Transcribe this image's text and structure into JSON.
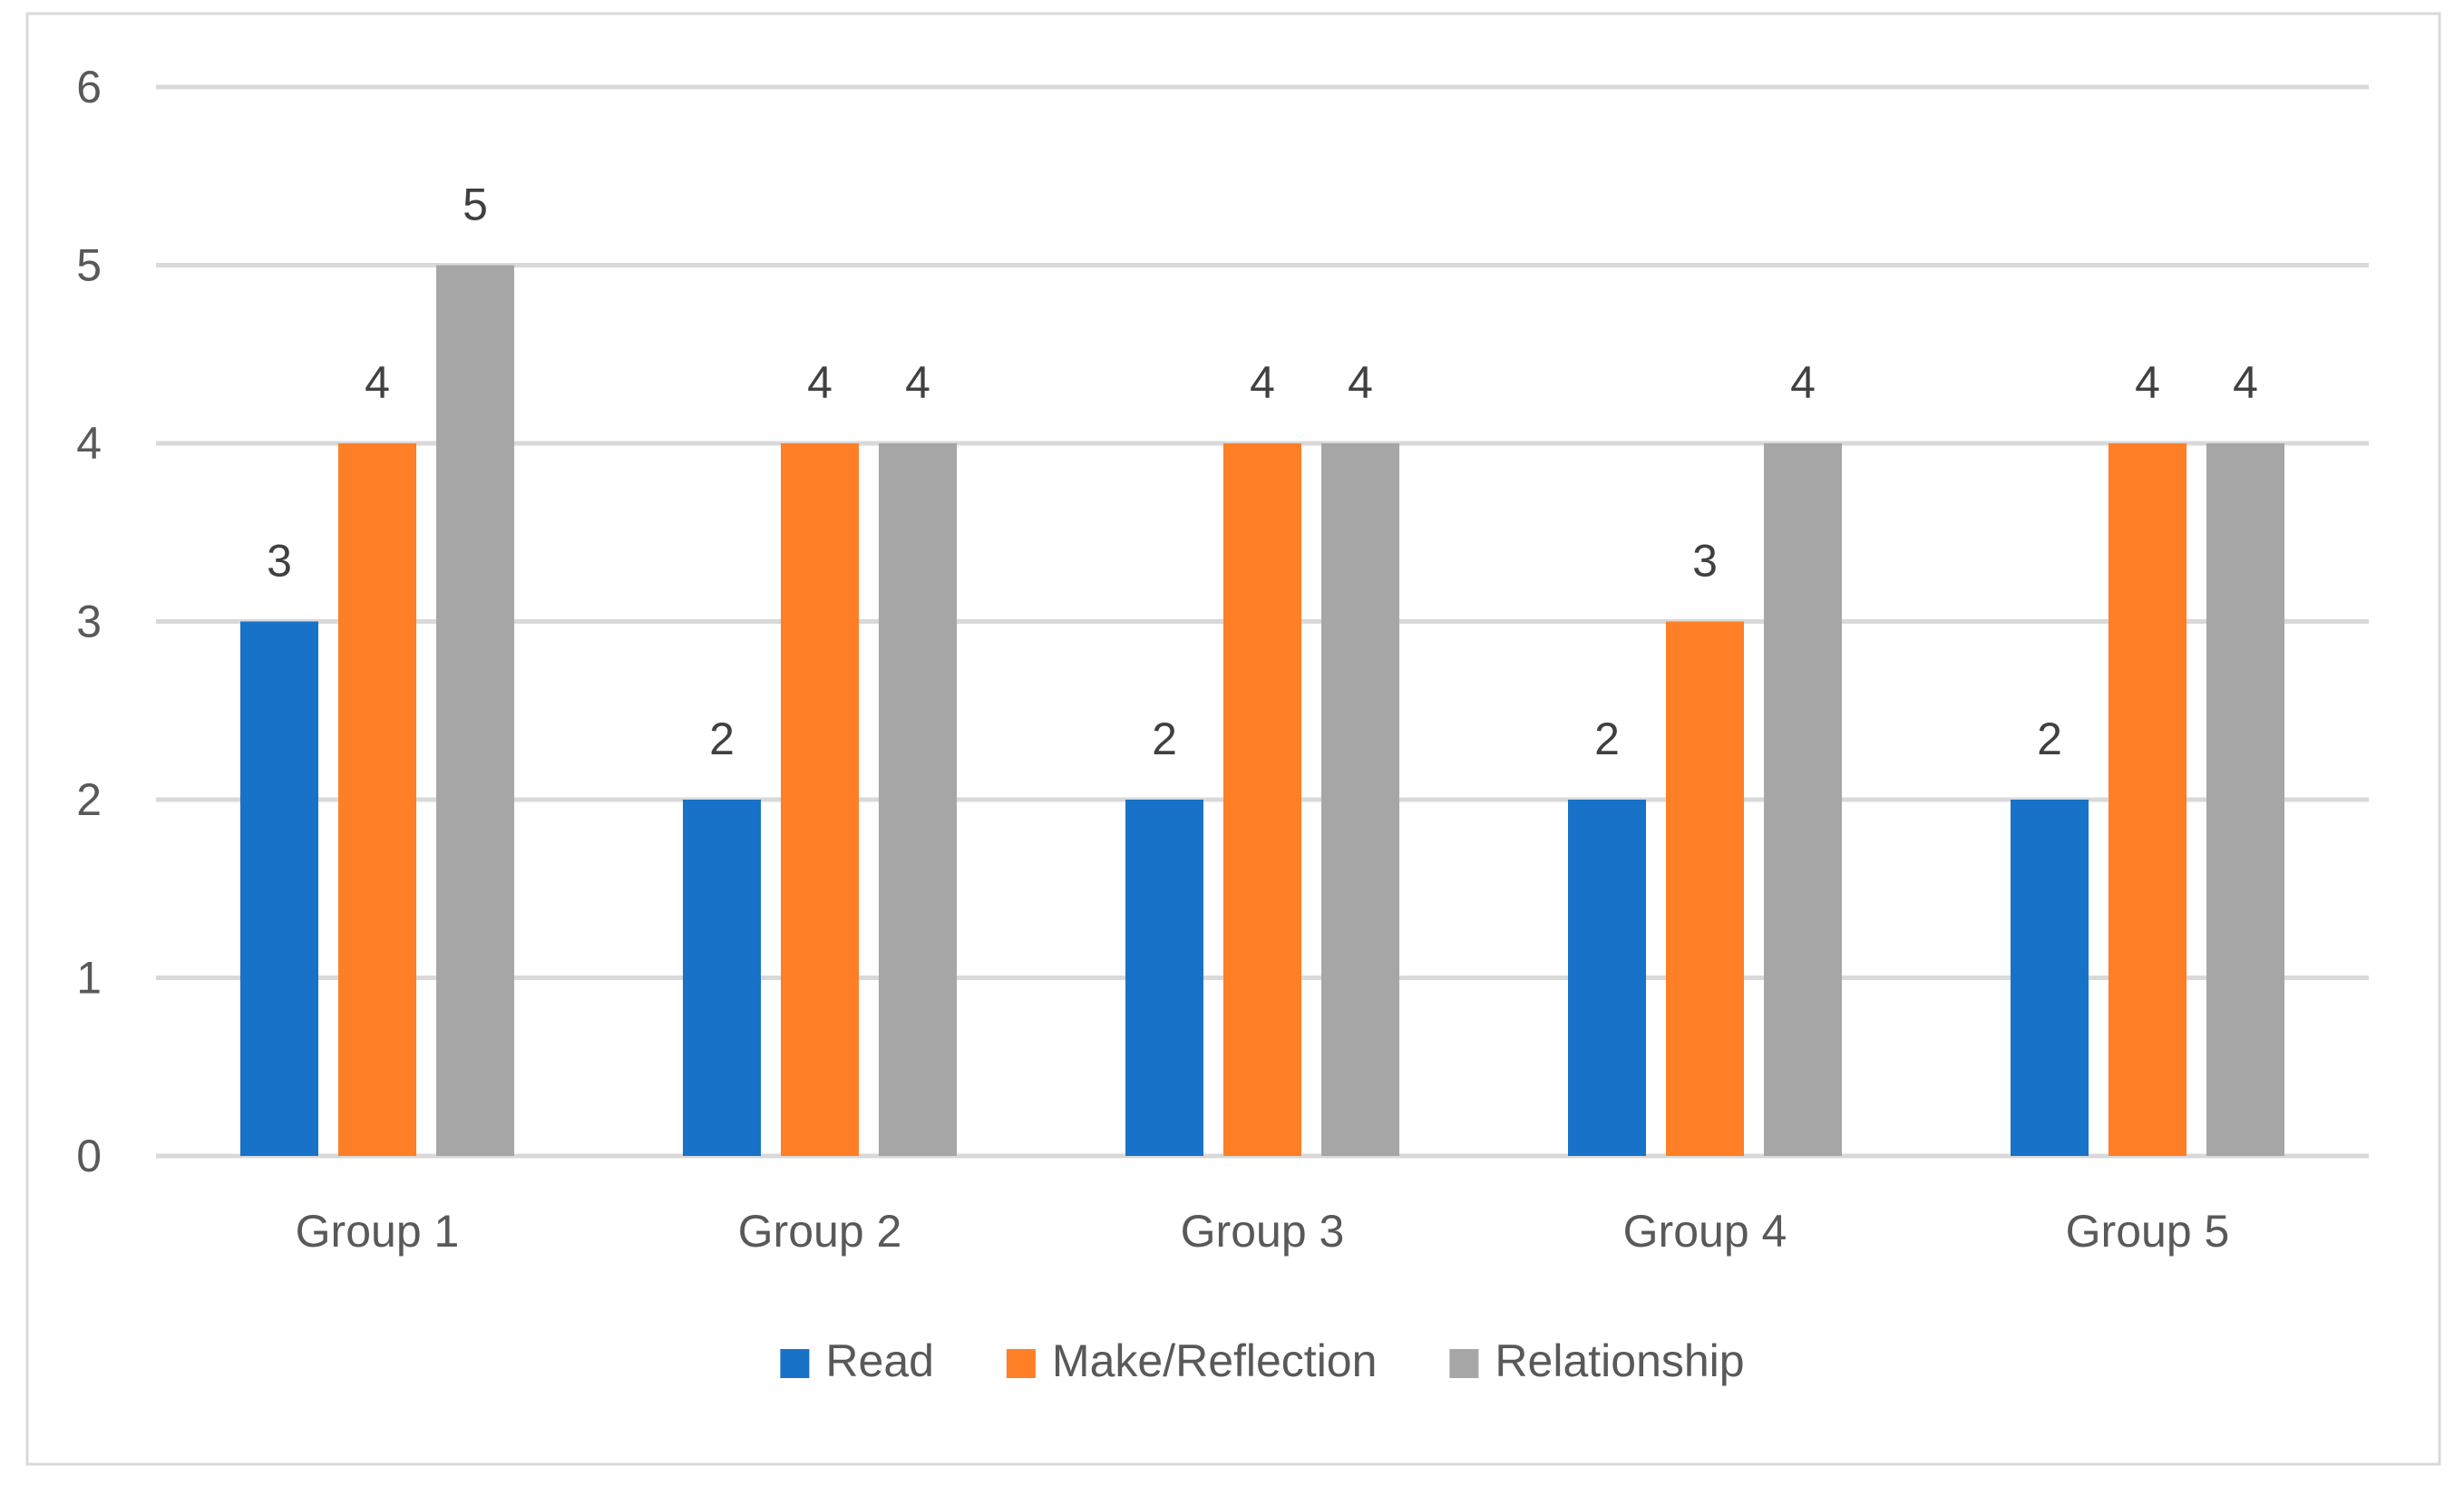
{
  "chart_data": {
    "type": "bar",
    "title": "",
    "xlabel": "",
    "ylabel": "",
    "categories": [
      "Group 1",
      "Group 2",
      "Group 3",
      "Group 4",
      "Group 5"
    ],
    "series": [
      {
        "name": "Read",
        "color": "#1872c8",
        "values": [
          3,
          2,
          2,
          2,
          2
        ]
      },
      {
        "name": "Make/Reflection",
        "color": "#fe7f25",
        "values": [
          4,
          4,
          4,
          3,
          4
        ]
      },
      {
        "name": "Relationship",
        "color": "#a6a6a6",
        "values": [
          5,
          4,
          4,
          4,
          4
        ]
      }
    ],
    "ylim": [
      0,
      6
    ],
    "yticks": [
      0,
      1,
      2,
      3,
      4,
      5,
      6
    ],
    "grid": true,
    "data_labels": true,
    "legend_position": "bottom"
  }
}
